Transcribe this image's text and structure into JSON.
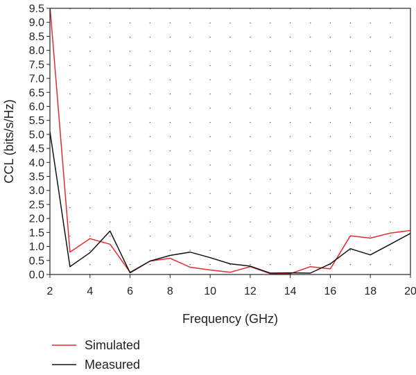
{
  "chart_data": {
    "type": "line",
    "xlabel": "Frequency (GHz)",
    "ylabel": "CCL (bits/s/Hz)",
    "xlim": [
      2,
      20
    ],
    "ylim": [
      0,
      9.5
    ],
    "xticks": [
      "2",
      "4",
      "6",
      "8",
      "10",
      "12",
      "14",
      "16",
      "18",
      "20"
    ],
    "yticks": [
      "0.0",
      "0.5",
      "1.0",
      "1.5",
      "2.0",
      "2.5",
      "3.0",
      "3.5",
      "4.0",
      "4.5",
      "5.0",
      "5.5",
      "6.0",
      "6.5",
      "7.0",
      "7.5",
      "8.0",
      "8.5",
      "9.0",
      "9.5"
    ],
    "grid": "dotted",
    "legend_position": "bottom-left",
    "x": [
      2,
      3,
      4,
      5,
      6,
      7,
      8,
      9,
      10,
      11,
      12,
      13,
      14,
      15,
      16,
      17,
      18,
      19,
      20
    ],
    "series": [
      {
        "name": "Simulated",
        "color": "#e8272d",
        "values": [
          9.6,
          0.8,
          1.28,
          1.08,
          0.08,
          0.48,
          0.58,
          0.26,
          0.16,
          0.08,
          0.28,
          0.03,
          0.03,
          0.28,
          0.2,
          1.38,
          1.3,
          1.48,
          1.57
        ]
      },
      {
        "name": "Measured",
        "color": "#111111",
        "values": [
          5.1,
          0.28,
          0.78,
          1.55,
          0.06,
          0.48,
          0.68,
          0.8,
          0.6,
          0.38,
          0.3,
          0.05,
          0.06,
          0.05,
          0.38,
          0.92,
          0.7,
          1.08,
          1.47
        ]
      }
    ]
  }
}
